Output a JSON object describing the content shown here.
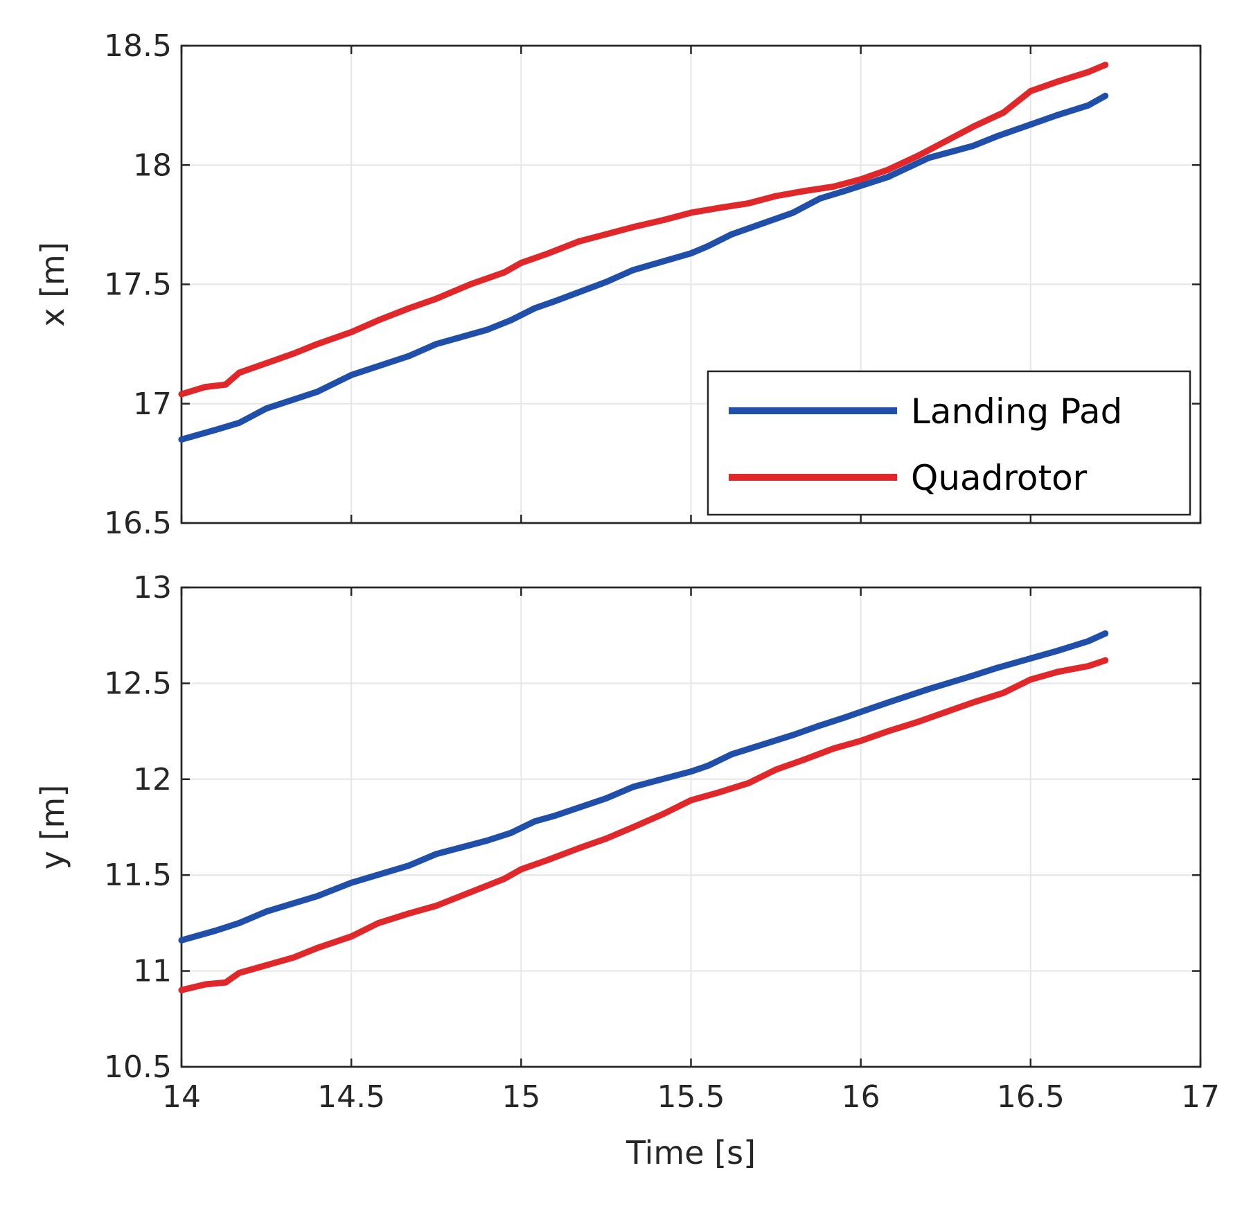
{
  "chart_data": [
    {
      "type": "line",
      "xlabel": "",
      "ylabel": "x [m]",
      "xlim": [
        14,
        17
      ],
      "ylim": [
        16.5,
        18.5
      ],
      "xticks": [
        "14",
        "14.5",
        "15",
        "15.5",
        "16",
        "16.5",
        "17"
      ],
      "xticklabels_visible": false,
      "yticks": [
        "16.5",
        "17",
        "17.5",
        "18",
        "18.5"
      ],
      "grid": true,
      "legend": {
        "placement": "bottom-right",
        "entries": [
          "Landing Pad",
          "Quadrotor"
        ]
      },
      "series": [
        {
          "name": "Landing Pad",
          "color": "#1f4fa8",
          "x": [
            14.0,
            14.1,
            14.17,
            14.25,
            14.4,
            14.5,
            14.67,
            14.75,
            14.9,
            14.97,
            15.04,
            15.1,
            15.25,
            15.33,
            15.5,
            15.55,
            15.62,
            15.8,
            15.88,
            15.95,
            16.08,
            16.2,
            16.33,
            16.4,
            16.5,
            16.58,
            16.67,
            16.72
          ],
          "y": [
            16.85,
            16.89,
            16.92,
            16.98,
            17.05,
            17.12,
            17.2,
            17.25,
            17.31,
            17.35,
            17.4,
            17.43,
            17.51,
            17.56,
            17.63,
            17.66,
            17.71,
            17.8,
            17.86,
            17.89,
            17.95,
            18.03,
            18.08,
            18.12,
            18.17,
            18.21,
            18.25,
            18.29
          ]
        },
        {
          "name": "Quadrotor",
          "color": "#e0282b",
          "x": [
            14.0,
            14.07,
            14.13,
            14.17,
            14.25,
            14.33,
            14.4,
            14.5,
            14.58,
            14.67,
            14.75,
            14.85,
            14.95,
            15.0,
            15.08,
            15.17,
            15.25,
            15.33,
            15.42,
            15.5,
            15.58,
            15.67,
            15.75,
            15.83,
            15.92,
            16.0,
            16.08,
            16.17,
            16.25,
            16.33,
            16.42,
            16.5,
            16.58,
            16.67,
            16.72
          ],
          "y": [
            17.04,
            17.07,
            17.08,
            17.13,
            17.17,
            17.21,
            17.25,
            17.3,
            17.35,
            17.4,
            17.44,
            17.5,
            17.55,
            17.59,
            17.63,
            17.68,
            17.71,
            17.74,
            17.77,
            17.8,
            17.82,
            17.84,
            17.87,
            17.89,
            17.91,
            17.94,
            17.98,
            18.04,
            18.1,
            18.16,
            18.22,
            18.31,
            18.35,
            18.39,
            18.42
          ]
        }
      ]
    },
    {
      "type": "line",
      "xlabel": "Time [s]",
      "ylabel": "y [m]",
      "xlim": [
        14,
        17
      ],
      "ylim": [
        10.5,
        13
      ],
      "xticks": [
        "14",
        "14.5",
        "15",
        "15.5",
        "16",
        "16.5",
        "17"
      ],
      "yticks": [
        "10.5",
        "11",
        "11.5",
        "12",
        "12.5",
        "13"
      ],
      "grid": true,
      "series": [
        {
          "name": "Landing Pad",
          "color": "#1f4fa8",
          "x": [
            14.0,
            14.1,
            14.17,
            14.25,
            14.4,
            14.5,
            14.67,
            14.75,
            14.9,
            14.97,
            15.04,
            15.1,
            15.25,
            15.33,
            15.5,
            15.55,
            15.62,
            15.8,
            15.88,
            15.95,
            16.08,
            16.2,
            16.33,
            16.4,
            16.5,
            16.58,
            16.67,
            16.72
          ],
          "y": [
            11.16,
            11.21,
            11.25,
            11.31,
            11.39,
            11.46,
            11.55,
            11.61,
            11.68,
            11.72,
            11.78,
            11.81,
            11.9,
            11.96,
            12.04,
            12.07,
            12.13,
            12.23,
            12.28,
            12.32,
            12.4,
            12.47,
            12.54,
            12.58,
            12.63,
            12.67,
            12.72,
            12.76
          ]
        },
        {
          "name": "Quadrotor",
          "color": "#e0282b",
          "x": [
            14.0,
            14.07,
            14.13,
            14.17,
            14.25,
            14.33,
            14.4,
            14.5,
            14.58,
            14.67,
            14.75,
            14.85,
            14.95,
            15.0,
            15.08,
            15.17,
            15.25,
            15.33,
            15.42,
            15.5,
            15.58,
            15.67,
            15.75,
            15.83,
            15.92,
            16.0,
            16.08,
            16.17,
            16.25,
            16.33,
            16.42,
            16.5,
            16.58,
            16.67,
            16.72
          ],
          "y": [
            10.9,
            10.93,
            10.94,
            10.99,
            11.03,
            11.07,
            11.12,
            11.18,
            11.25,
            11.3,
            11.34,
            11.41,
            11.48,
            11.53,
            11.58,
            11.64,
            11.69,
            11.75,
            11.82,
            11.89,
            11.93,
            11.98,
            12.05,
            12.1,
            12.16,
            12.2,
            12.25,
            12.3,
            12.35,
            12.4,
            12.45,
            12.52,
            12.56,
            12.59,
            12.62
          ]
        }
      ]
    }
  ]
}
